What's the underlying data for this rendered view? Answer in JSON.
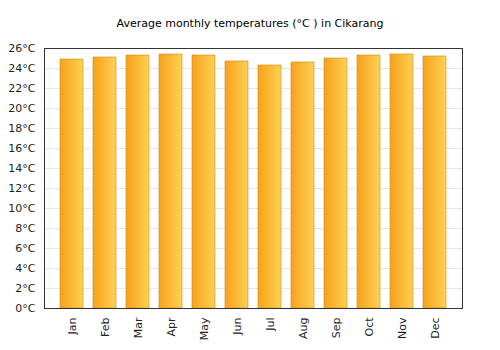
{
  "chart_data": {
    "type": "bar",
    "title": "Average monthly temperatures (°C ) in Cikarang",
    "categories": [
      "Jan",
      "Feb",
      "Mar",
      "Apr",
      "May",
      "Jun",
      "Jul",
      "Aug",
      "Sep",
      "Oct",
      "Nov",
      "Dec"
    ],
    "values": [
      24.9,
      25.1,
      25.3,
      25.4,
      25.3,
      24.7,
      24.3,
      24.6,
      25.0,
      25.3,
      25.4,
      25.2
    ],
    "color": "#f7a21b",
    "ylim": [
      0,
      26
    ],
    "yticks": [
      {
        "value": 0,
        "label": "0°C"
      },
      {
        "value": 2,
        "label": "2°C"
      },
      {
        "value": 4,
        "label": "4°C"
      },
      {
        "value": 6,
        "label": "6°C"
      },
      {
        "value": 8,
        "label": "8°C"
      },
      {
        "value": 10,
        "label": "10°C"
      },
      {
        "value": 12,
        "label": "12°C"
      },
      {
        "value": 14,
        "label": "14°C"
      },
      {
        "value": 16,
        "label": "16°C"
      },
      {
        "value": 18,
        "label": "18°C"
      },
      {
        "value": 20,
        "label": "20°C"
      },
      {
        "value": 22,
        "label": "22°C"
      },
      {
        "value": 24,
        "label": "24°C"
      },
      {
        "value": 26,
        "label": "26°C"
      }
    ],
    "grid": true
  }
}
